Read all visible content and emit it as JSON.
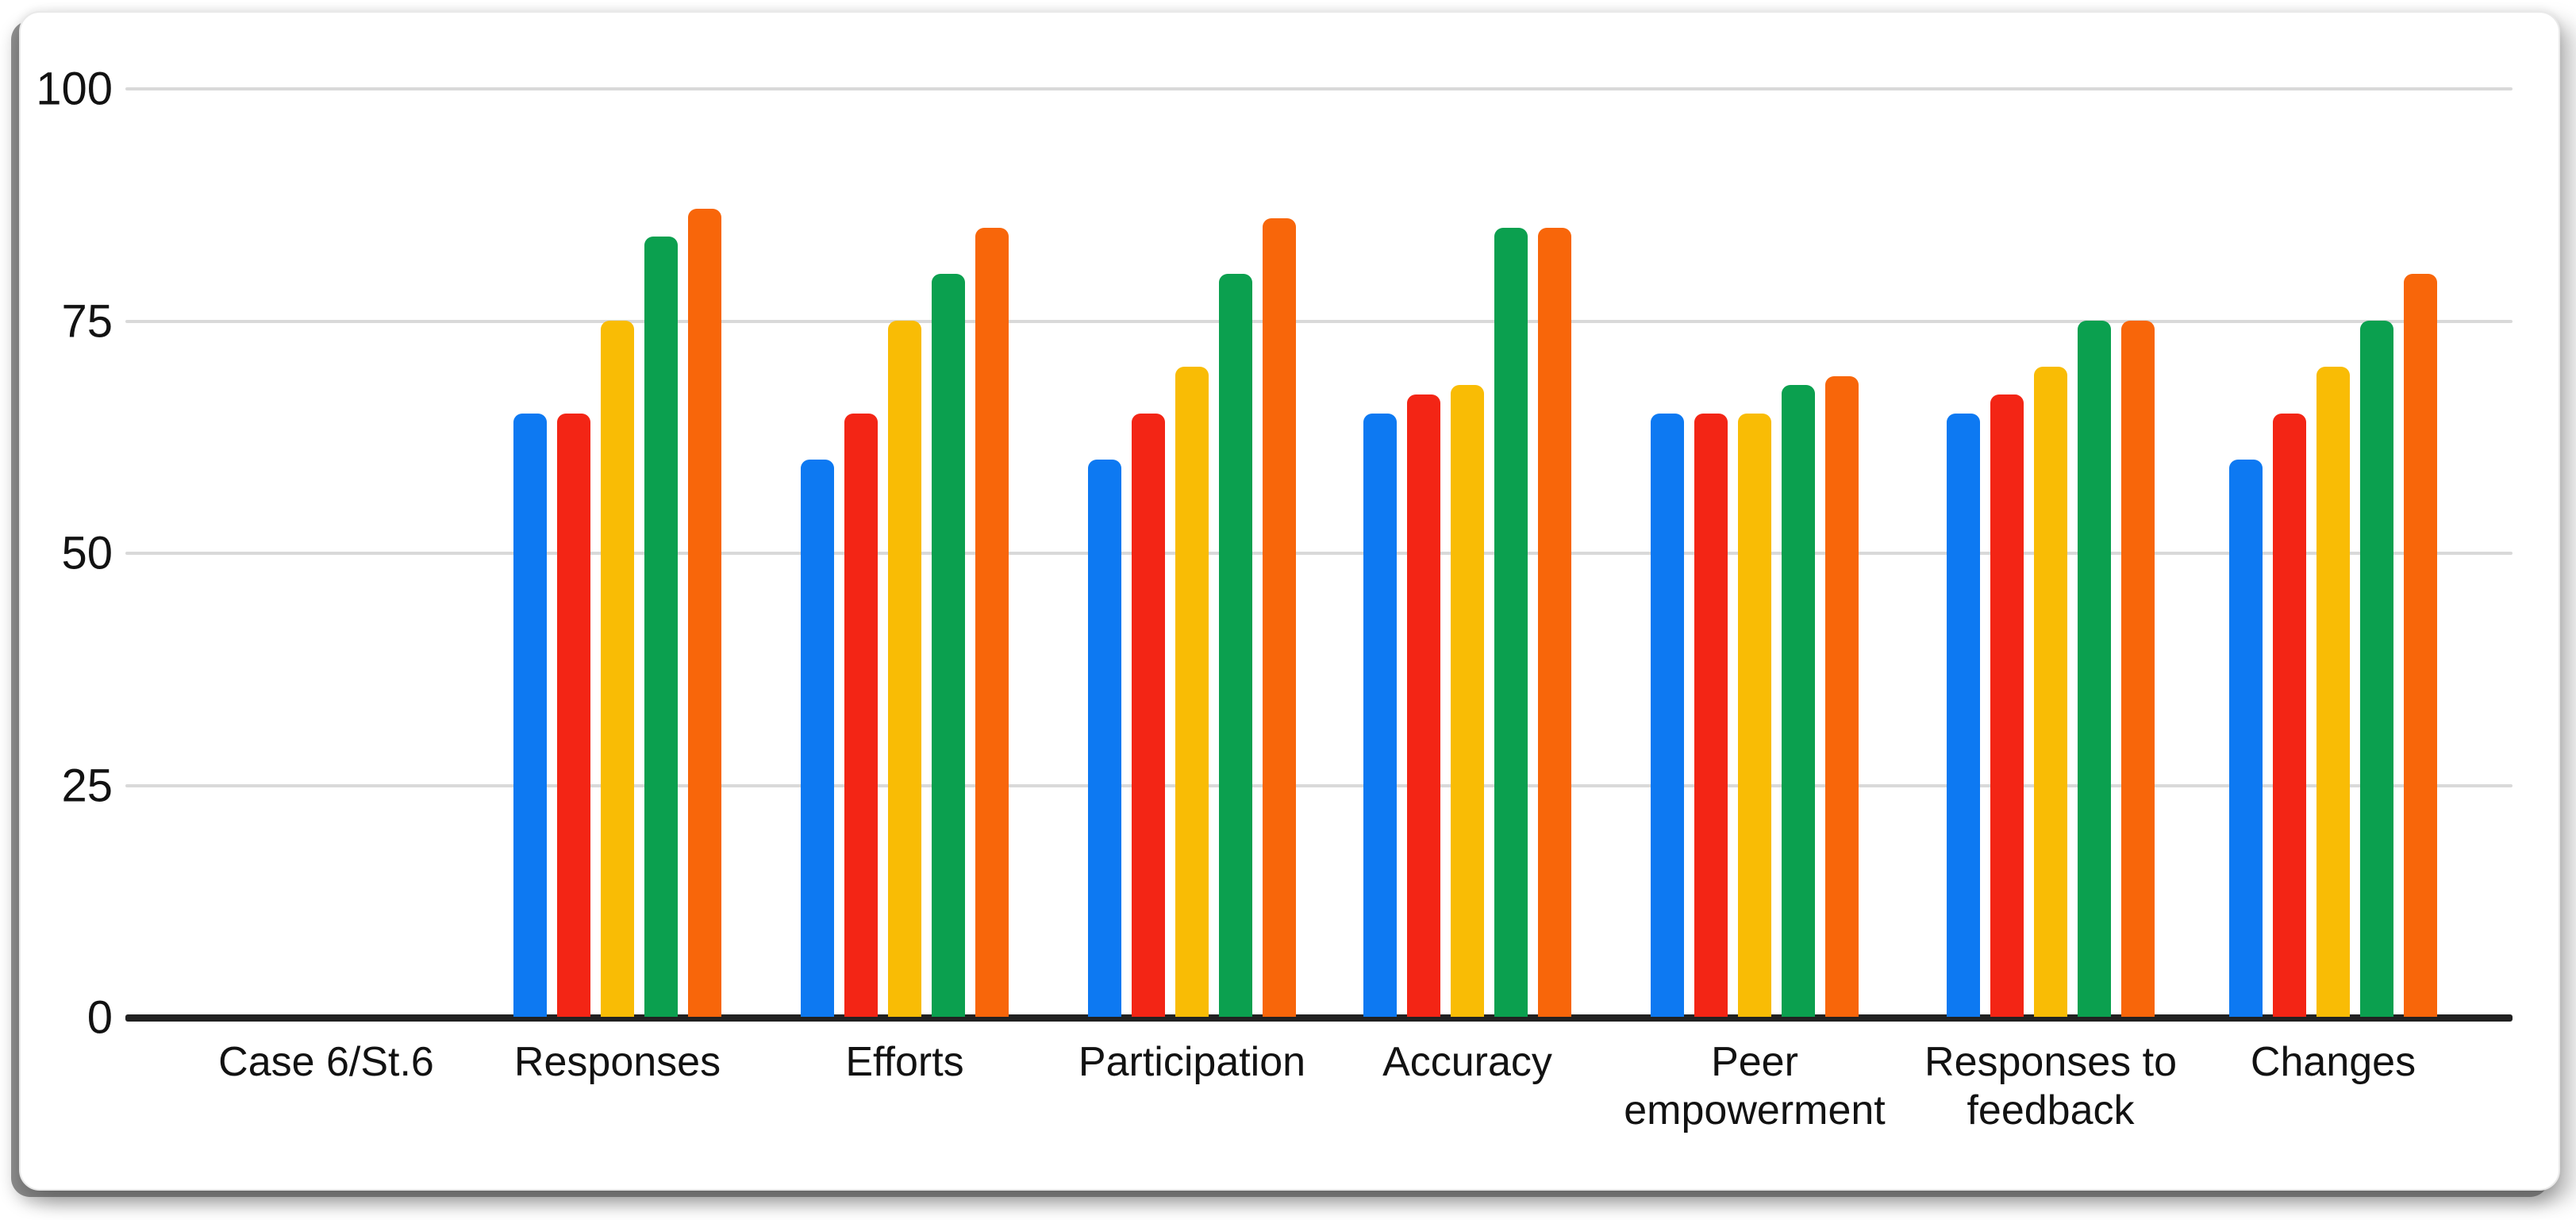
{
  "chart_data": {
    "type": "bar",
    "title": "",
    "xlabel": "",
    "ylabel": "",
    "categories": [
      "Case 6/St.6",
      "Responses",
      "Efforts",
      "Participation",
      "Accuracy",
      "Peer empowerment",
      "Responses to feedback",
      "Changes"
    ],
    "series": [
      {
        "name": "series-blue",
        "color": "#0d79f2",
        "values": [
          null,
          65,
          60,
          60,
          65,
          65,
          65,
          60
        ]
      },
      {
        "name": "series-red",
        "color": "#f32515",
        "values": [
          null,
          65,
          65,
          65,
          67,
          65,
          67,
          65
        ]
      },
      {
        "name": "series-yellow",
        "color": "#f9bc05",
        "values": [
          null,
          75,
          75,
          70,
          68,
          65,
          70,
          70
        ]
      },
      {
        "name": "series-green",
        "color": "#0ba04f",
        "values": [
          null,
          84,
          80,
          80,
          85,
          68,
          75,
          75
        ]
      },
      {
        "name": "series-orange",
        "color": "#f8660a",
        "values": [
          null,
          87,
          85,
          86,
          85,
          69,
          75,
          80
        ]
      }
    ],
    "y_ticks": [
      0,
      25,
      50,
      75,
      100
    ],
    "ylim": [
      0,
      100
    ],
    "grid": true,
    "legend_position": "none",
    "axis_color": "#212121",
    "gridline_color": "#d9d9d9"
  }
}
